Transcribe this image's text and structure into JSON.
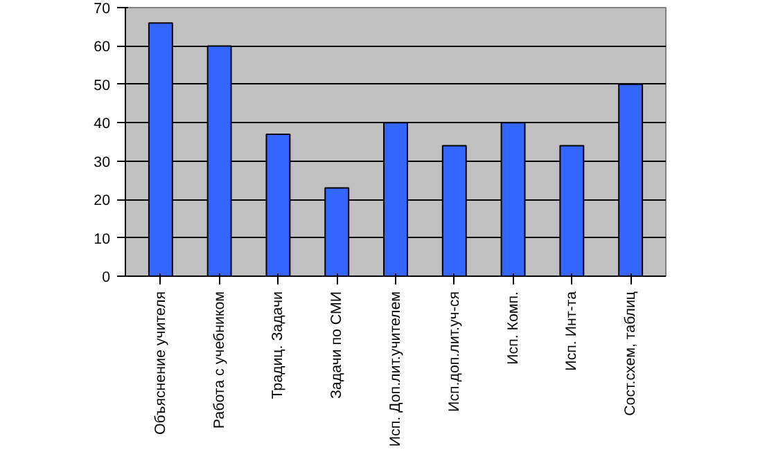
{
  "chart_data": {
    "type": "bar",
    "categories": [
      "Объяснение учителя",
      "Работа с учебником",
      "Традиц. Задачи",
      "Задачи по СМИ",
      "Исп. Доп.лит.учителем",
      "Исп.доп.лит.уч-ся",
      "Исп. Комп.",
      "Исп. Инт-та",
      "Сост.схем, таблиц"
    ],
    "values": [
      66,
      60,
      37,
      23,
      40,
      34,
      40,
      34,
      50
    ],
    "color": "#3366ff",
    "ylim": [
      0,
      70
    ],
    "yticks": [
      0,
      10,
      20,
      30,
      40,
      50,
      60,
      70
    ],
    "grid": "y"
  }
}
